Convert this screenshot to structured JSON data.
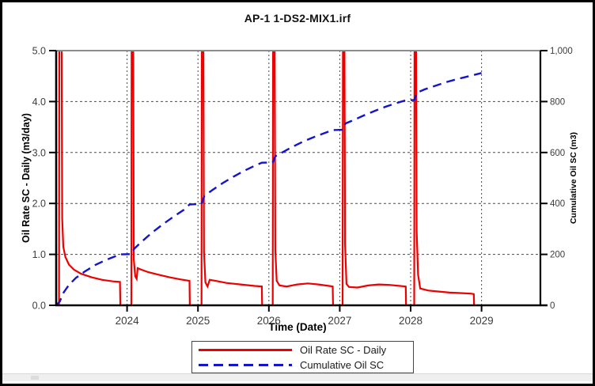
{
  "window": {
    "border_color": "#000000",
    "background": "#ffffff",
    "scrollbar_color": "#efefef"
  },
  "chart_data": {
    "type": "line",
    "title": "AP-1 1-DS2-MIX1.irf",
    "xlabel": "Time (Date)",
    "ylabel_left": "Oil Rate SC - Daily (m3/day)",
    "ylabel_right": "Cumulative Oil SC (m3)",
    "xlim": [
      2023.0,
      2029.83
    ],
    "ylim_left": [
      0,
      5
    ],
    "ylim_right": [
      0,
      1000
    ],
    "x_ticks": [
      2024,
      2025,
      2026,
      2027,
      2028,
      2029
    ],
    "x_tick_labels": [
      "2024",
      "2025",
      "2026",
      "2027",
      "2028",
      "2029"
    ],
    "left_ticks": [
      0,
      1,
      2,
      3,
      4,
      5
    ],
    "left_tick_labels": [
      "0.0",
      "1.0",
      "2.0",
      "3.0",
      "4.0",
      "5.0"
    ],
    "right_ticks": [
      0,
      200,
      400,
      600,
      800,
      1000
    ],
    "right_tick_labels": [
      "0",
      "200",
      "400",
      "600",
      "800",
      "1,000"
    ],
    "grid": true,
    "grid_color": "#4a4a4a",
    "tick_label_color": "#3c3c3c",
    "legend_position": "bottom-center",
    "series": [
      {
        "name": "Oil Rate SC - Daily",
        "axis": "left",
        "color": "#ee0000",
        "line_style": "solid",
        "points": [
          [
            2023.0,
            0
          ],
          [
            2023.04,
            0
          ],
          [
            2023.045,
            6
          ],
          [
            2023.075,
            6
          ],
          [
            2023.085,
            1.7
          ],
          [
            2023.1,
            1.15
          ],
          [
            2023.13,
            0.95
          ],
          [
            2023.18,
            0.8
          ],
          [
            2023.25,
            0.7
          ],
          [
            2023.35,
            0.62
          ],
          [
            2023.5,
            0.55
          ],
          [
            2023.65,
            0.5
          ],
          [
            2023.8,
            0.47
          ],
          [
            2023.9,
            0.46
          ],
          [
            2023.905,
            0
          ],
          [
            2024.06,
            0
          ],
          [
            2024.065,
            6
          ],
          [
            2024.085,
            6
          ],
          [
            2024.095,
            0.9
          ],
          [
            2024.115,
            0.57
          ],
          [
            2024.135,
            0.52
          ],
          [
            2024.15,
            0.73
          ],
          [
            2024.2,
            0.7
          ],
          [
            2024.3,
            0.65
          ],
          [
            2024.45,
            0.6
          ],
          [
            2024.6,
            0.55
          ],
          [
            2024.75,
            0.51
          ],
          [
            2024.88,
            0.48
          ],
          [
            2024.885,
            0
          ],
          [
            2025.05,
            0
          ],
          [
            2025.055,
            6
          ],
          [
            2025.075,
            6
          ],
          [
            2025.085,
            1.05
          ],
          [
            2025.105,
            0.45
          ],
          [
            2025.135,
            0.37
          ],
          [
            2025.165,
            0.5
          ],
          [
            2025.25,
            0.48
          ],
          [
            2025.4,
            0.44
          ],
          [
            2025.6,
            0.41
          ],
          [
            2025.8,
            0.38
          ],
          [
            2025.9,
            0.37
          ],
          [
            2025.905,
            0
          ],
          [
            2026.055,
            0
          ],
          [
            2026.06,
            6
          ],
          [
            2026.08,
            6
          ],
          [
            2026.09,
            1.1
          ],
          [
            2026.11,
            0.48
          ],
          [
            2026.15,
            0.39
          ],
          [
            2026.25,
            0.37
          ],
          [
            2026.4,
            0.41
          ],
          [
            2026.55,
            0.43
          ],
          [
            2026.7,
            0.41
          ],
          [
            2026.85,
            0.38
          ],
          [
            2026.9,
            0.37
          ],
          [
            2026.905,
            0
          ],
          [
            2027.04,
            0
          ],
          [
            2027.045,
            6
          ],
          [
            2027.065,
            6
          ],
          [
            2027.075,
            1.2
          ],
          [
            2027.095,
            0.42
          ],
          [
            2027.13,
            0.36
          ],
          [
            2027.25,
            0.35
          ],
          [
            2027.4,
            0.39
          ],
          [
            2027.55,
            0.41
          ],
          [
            2027.7,
            0.4
          ],
          [
            2027.85,
            0.38
          ],
          [
            2027.93,
            0.37
          ],
          [
            2027.935,
            0
          ],
          [
            2028.05,
            0
          ],
          [
            2028.055,
            6
          ],
          [
            2028.075,
            6
          ],
          [
            2028.085,
            1.45
          ],
          [
            2028.105,
            0.6
          ],
          [
            2028.135,
            0.33
          ],
          [
            2028.25,
            0.29
          ],
          [
            2028.4,
            0.27
          ],
          [
            2028.55,
            0.25
          ],
          [
            2028.7,
            0.24
          ],
          [
            2028.85,
            0.23
          ],
          [
            2028.89,
            0.22
          ],
          [
            2028.895,
            0
          ]
        ]
      },
      {
        "name": "Cumulative Oil SC",
        "axis": "right",
        "color": "#1414cc",
        "line_style": "dashed",
        "points": [
          [
            2023.0,
            0
          ],
          [
            2023.05,
            15
          ],
          [
            2023.1,
            48
          ],
          [
            2023.18,
            80
          ],
          [
            2023.28,
            108
          ],
          [
            2023.4,
            132
          ],
          [
            2023.55,
            158
          ],
          [
            2023.7,
            178
          ],
          [
            2023.85,
            194
          ],
          [
            2023.905,
            200
          ],
          [
            2024.06,
            201
          ],
          [
            2024.1,
            222
          ],
          [
            2024.2,
            248
          ],
          [
            2024.35,
            285
          ],
          [
            2024.5,
            317
          ],
          [
            2024.65,
            347
          ],
          [
            2024.8,
            375
          ],
          [
            2024.88,
            396
          ],
          [
            2025.05,
            398
          ],
          [
            2025.09,
            430
          ],
          [
            2025.2,
            452
          ],
          [
            2025.35,
            480
          ],
          [
            2025.5,
            505
          ],
          [
            2025.65,
            528
          ],
          [
            2025.8,
            548
          ],
          [
            2025.9,
            560
          ],
          [
            2026.055,
            561
          ],
          [
            2026.09,
            585
          ],
          [
            2026.2,
            602
          ],
          [
            2026.35,
            625
          ],
          [
            2026.5,
            645
          ],
          [
            2026.65,
            662
          ],
          [
            2026.8,
            678
          ],
          [
            2026.9,
            688
          ],
          [
            2027.04,
            689
          ],
          [
            2027.08,
            714
          ],
          [
            2027.2,
            728
          ],
          [
            2027.35,
            747
          ],
          [
            2027.5,
            764
          ],
          [
            2027.65,
            780
          ],
          [
            2027.8,
            794
          ],
          [
            2027.93,
            805
          ],
          [
            2028.05,
            806
          ],
          [
            2028.09,
            835
          ],
          [
            2028.2,
            848
          ],
          [
            2028.35,
            862
          ],
          [
            2028.5,
            876
          ],
          [
            2028.65,
            888
          ],
          [
            2028.8,
            898
          ],
          [
            2028.9,
            905
          ],
          [
            2029.0,
            912
          ]
        ]
      }
    ]
  }
}
